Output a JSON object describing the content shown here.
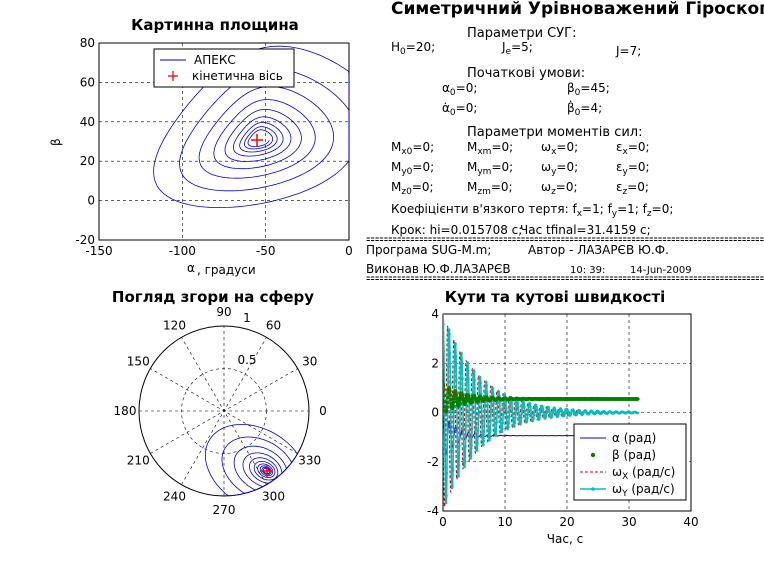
{
  "window": {
    "title": "Симетричний Урівноважений Гіроскоп"
  },
  "panel1": {
    "title": "Картинна площина",
    "xlabel_sym": "α",
    "xlabel_rest": ", градуси",
    "ylabel": "β",
    "legend_line": "АПЕКС",
    "legend_marker": "кінетична вісь"
  },
  "panel2": {
    "title": "Погляд згори на сферу",
    "angle_labels": [
      "90",
      "60",
      "30",
      "0",
      "330",
      "300",
      "270",
      "240",
      "210",
      "180",
      "150",
      "120"
    ],
    "radius_labels": [
      "1",
      "0.5"
    ]
  },
  "panel3": {
    "title": "Кути та кутові швидкості",
    "xlabel": "Час, с",
    "legend": [
      {
        "sym": "α",
        "sub": "",
        "txt": " (рад)"
      },
      {
        "sym": "β",
        "sub": "",
        "txt": " (рад)"
      },
      {
        "sym": "ω",
        "sub": "X",
        "txt": " (рад/с)"
      },
      {
        "sym": "ω",
        "sub": "Y",
        "txt": " (рад/с)"
      }
    ]
  },
  "info": {
    "head_params": "Параметри СУГ:",
    "H0": "=20;",
    "Je": "=5;",
    "J": "J=7;",
    "head_init": "Початкові умови:",
    "alpha0": "=0;",
    "beta0": "=45;",
    "alpha0dot": "=0;",
    "beta0dot": "=4;",
    "head_moments": "Параметри моментів сил:",
    "rows": [
      [
        "M",
        "x0",
        "=0;",
        "M",
        "xm",
        "=0;",
        "ω",
        "x",
        "=0;",
        "ε",
        "x",
        "=0;"
      ],
      [
        "M",
        "y0",
        "=0;",
        "M",
        "ym",
        "=0;",
        "ω",
        "y",
        "=0;",
        "ε",
        "y",
        "=0;"
      ],
      [
        "M",
        "z0",
        "=0;",
        "M",
        "zm",
        "=0;",
        "ω",
        "z",
        "=0;",
        "ε",
        "z",
        "=0;"
      ]
    ],
    "friction": "Коефіцієнти в'язкого тертя:  f",
    "friction_x": "=1;  f",
    "friction_y": "=1;  f",
    "friction_z": "=0;",
    "step": "Крок:  hi=0.015708 с;",
    "tfinal": "Час tfinal=31.4159 с;",
    "separator": "==========================================================================================",
    "program": "Програма  SUG-M.m;",
    "author": "Автор - ЛАЗАРЄВ Ю.Ф.",
    "executor": "Виконав  Ю.Ф.ЛАЗАРЄВ",
    "time": "10: 39:",
    "date": "14-Jun-2009"
  },
  "chart_data": [
    {
      "type": "line",
      "title": "Картинна площина",
      "xlabel": "α, градуси",
      "ylabel": "β",
      "xlim": [
        -150,
        0
      ],
      "ylim": [
        -20,
        80
      ],
      "xticks": [
        -150,
        -100,
        -50,
        0
      ],
      "yticks": [
        -20,
        0,
        20,
        40,
        60,
        80
      ],
      "grid": true,
      "legend_position": "top",
      "series": [
        {
          "name": "АПЕКС",
          "description_points": "spiral from (0,45) inward to (-54,31)"
        },
        {
          "name": "кінетична вісь",
          "marker": "+",
          "x": [
            -54
          ],
          "y": [
            31
          ]
        }
      ],
      "color_apex": "#0000cc",
      "color_axis": "#ff0000"
    },
    {
      "type": "scatter",
      "title": "Погляд згори на сферу",
      "projection": "polar",
      "rlim": [
        0,
        1
      ],
      "theta_ticks_deg": [
        0,
        30,
        60,
        90,
        120,
        150,
        180,
        210,
        240,
        270,
        300,
        330
      ],
      "rticks": [
        0.5,
        1
      ],
      "center_point": {
        "theta_deg": 322,
        "r": 0.57
      }
    },
    {
      "type": "line",
      "title": "Кути та кутові швидкості",
      "xlabel": "Час, с",
      "xlim": [
        0,
        40
      ],
      "ylim": [
        -4,
        4
      ],
      "xticks": [
        0,
        10,
        20,
        30,
        40
      ],
      "yticks": [
        -4,
        -2,
        0,
        2,
        4
      ],
      "grid": true,
      "legend_position": "bottom-right",
      "series": [
        {
          "name": "α (рад)",
          "color": "#0000cc",
          "final": -0.94
        },
        {
          "name": "β (рад)",
          "color": "#007f00",
          "final": 0.55
        },
        {
          "name": "ωX (рад/с)",
          "color": "#cc0000",
          "final": 0
        },
        {
          "name": "ωY (рад/с)",
          "color": "#00bfbf",
          "final": 0
        }
      ],
      "t_end": 31.4159
    }
  ]
}
